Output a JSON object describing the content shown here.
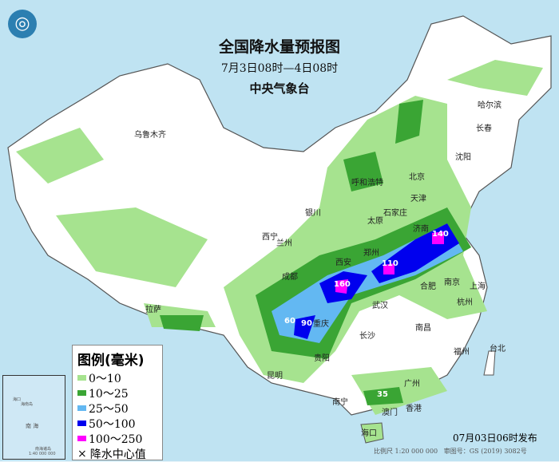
{
  "header": {
    "title": "全国降水量预报图",
    "period": "7月3日08时—4日08时",
    "issuer": "中央气象台"
  },
  "logo": {
    "icon": "cma-logo-icon"
  },
  "colors": {
    "sea": "#bfe3f2",
    "land": "#ffffff",
    "r0_10": "#a6e38f",
    "r10_25": "#3aa534",
    "r25_50": "#63b8f2",
    "r50_100": "#0000ee",
    "r100_250": "#ff00ff"
  },
  "cities": [
    {
      "name": "乌鲁木齐"
    },
    {
      "name": "哈尔滨"
    },
    {
      "name": "长春"
    },
    {
      "name": "沈阳"
    },
    {
      "name": "北京"
    },
    {
      "name": "天津"
    },
    {
      "name": "呼和浩特"
    },
    {
      "name": "石家庄"
    },
    {
      "name": "太原"
    },
    {
      "name": "济南"
    },
    {
      "name": "银川"
    },
    {
      "name": "西宁"
    },
    {
      "name": "兰州"
    },
    {
      "name": "郑州"
    },
    {
      "name": "西安"
    },
    {
      "name": "合肥"
    },
    {
      "name": "南京"
    },
    {
      "name": "上海"
    },
    {
      "name": "成都"
    },
    {
      "name": "武汉"
    },
    {
      "name": "杭州"
    },
    {
      "name": "拉萨"
    },
    {
      "name": "重庆"
    },
    {
      "name": "长沙"
    },
    {
      "name": "南昌"
    },
    {
      "name": "贵阳"
    },
    {
      "name": "福州"
    },
    {
      "name": "台北"
    },
    {
      "name": "昆明"
    },
    {
      "name": "广州"
    },
    {
      "name": "南宁"
    },
    {
      "name": "香港"
    },
    {
      "name": "澳门"
    },
    {
      "name": "海口"
    }
  ],
  "centers": [
    "140",
    "110",
    "160",
    "60",
    "90",
    "35"
  ],
  "legend": {
    "title": "图例(毫米)",
    "items": [
      {
        "label": "0～10",
        "color": "#a6e38f"
      },
      {
        "label": "10～25",
        "color": "#3aa534"
      },
      {
        "label": "25～50",
        "color": "#63b8f2"
      },
      {
        "label": "50～100",
        "color": "#0000ee"
      },
      {
        "label": "100～250",
        "color": "#ff00ff"
      },
      {
        "label": "降水中心值",
        "symbol": "×"
      }
    ]
  },
  "inset": {
    "labels": [
      "海口",
      "海南岛",
      "南 海",
      "南海诸岛",
      "1:40 000 000"
    ]
  },
  "footer": {
    "issued": "07月03日06时发布",
    "scale": "比例尺 1:20 000 000",
    "approval": "审图号：GS (2019) 3082号"
  }
}
